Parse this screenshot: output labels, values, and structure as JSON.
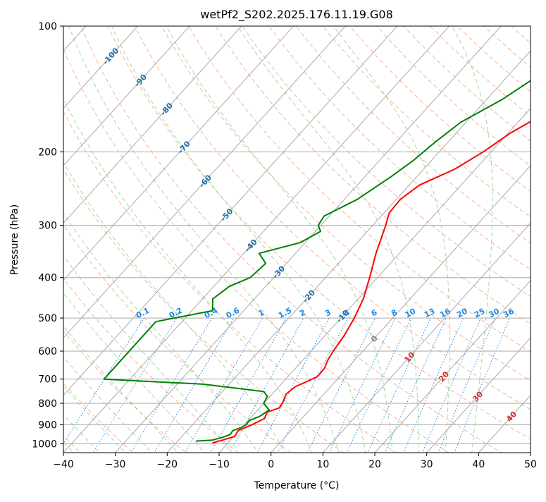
{
  "chart_data": {
    "type": "line",
    "title": "wetPf2_S202.2025.176.11.19.G08",
    "xlabel": "Temperature (°C)",
    "ylabel": "Pressure (hPa)",
    "xlim": [
      -40,
      50
    ],
    "ylim_hpa": [
      1050,
      100
    ],
    "y_scale": "log",
    "grid": true,
    "x_ticks": [
      "−40",
      "−30",
      "−20",
      "−10",
      "0",
      "10",
      "20",
      "30",
      "40",
      "50"
    ],
    "x_tick_values": [
      -40,
      -30,
      -20,
      -10,
      0,
      10,
      20,
      30,
      40,
      50
    ],
    "y_ticks": [
      "1000",
      "900",
      "800",
      "700",
      "600",
      "500",
      "400",
      "300",
      "200",
      "100"
    ],
    "y_tick_values": [
      1000,
      900,
      800,
      700,
      600,
      500,
      400,
      300,
      200,
      100
    ],
    "colors": {
      "temperature": "#ff0000",
      "dewpoint": "#008000",
      "isotherm": "#aaaaaa",
      "dry_adiabat": "#f4a07a",
      "moist_adiabat": "#8fce8f",
      "mixing_ratio": "#1e88e5",
      "isotherm_label": "#1f6fa8",
      "warm_isotherm_label": "#d62728",
      "zero_isotherm_label": "#808080",
      "mixing_ratio_label": "#1e88e5"
    },
    "series": [
      {
        "key": "temperature",
        "points": [
          {
            "p": 995,
            "t": -13.0
          },
          {
            "p": 980,
            "t": -11.5
          },
          {
            "p": 960,
            "t": -9.8
          },
          {
            "p": 930,
            "t": -10.2
          },
          {
            "p": 900,
            "t": -8.5
          },
          {
            "p": 870,
            "t": -7.2
          },
          {
            "p": 840,
            "t": -7.8
          },
          {
            "p": 820,
            "t": -6.2
          },
          {
            "p": 790,
            "t": -6.6
          },
          {
            "p": 760,
            "t": -7.3
          },
          {
            "p": 730,
            "t": -6.8
          },
          {
            "p": 705,
            "t": -5.2
          },
          {
            "p": 690,
            "t": -4.3
          },
          {
            "p": 660,
            "t": -4.4
          },
          {
            "p": 630,
            "t": -5.2
          },
          {
            "p": 600,
            "t": -5.7
          },
          {
            "p": 550,
            "t": -6.3
          },
          {
            "p": 500,
            "t": -7.4
          },
          {
            "p": 450,
            "t": -9.0
          },
          {
            "p": 400,
            "t": -11.5
          },
          {
            "p": 350,
            "t": -14.5
          },
          {
            "p": 300,
            "t": -17.5
          },
          {
            "p": 280,
            "t": -19.0
          },
          {
            "p": 260,
            "t": -19.2
          },
          {
            "p": 240,
            "t": -18.0
          },
          {
            "p": 220,
            "t": -14.0
          },
          {
            "p": 200,
            "t": -11.5
          },
          {
            "p": 180,
            "t": -9.5
          },
          {
            "p": 160,
            "t": -6.0
          },
          {
            "p": 140,
            "t": -3.5
          },
          {
            "p": 120,
            "t": -2.5
          },
          {
            "p": 100,
            "t": 1.2
          }
        ]
      },
      {
        "key": "dewpoint",
        "points": [
          {
            "p": 985,
            "t": -16.5
          },
          {
            "p": 980,
            "t": -13.5
          },
          {
            "p": 965,
            "t": -12.0
          },
          {
            "p": 950,
            "t": -11.0
          },
          {
            "p": 930,
            "t": -11.2
          },
          {
            "p": 915,
            "t": -10.2
          },
          {
            "p": 900,
            "t": -9.6
          },
          {
            "p": 880,
            "t": -9.8
          },
          {
            "p": 860,
            "t": -8.5
          },
          {
            "p": 830,
            "t": -7.8
          },
          {
            "p": 800,
            "t": -10.0
          },
          {
            "p": 770,
            "t": -10.5
          },
          {
            "p": 750,
            "t": -12.0
          },
          {
            "p": 720,
            "t": -25.0
          },
          {
            "p": 700,
            "t": -45.0
          },
          {
            "p": 510,
            "t": -45.0
          },
          {
            "p": 480,
            "t": -36.0
          },
          {
            "p": 450,
            "t": -38.0
          },
          {
            "p": 420,
            "t": -37.0
          },
          {
            "p": 400,
            "t": -34.5
          },
          {
            "p": 370,
            "t": -34.0
          },
          {
            "p": 350,
            "t": -37.0
          },
          {
            "p": 330,
            "t": -31.0
          },
          {
            "p": 310,
            "t": -29.0
          },
          {
            "p": 300,
            "t": -30.5
          },
          {
            "p": 285,
            "t": -31.0
          },
          {
            "p": 260,
            "t": -27.5
          },
          {
            "p": 230,
            "t": -25.0
          },
          {
            "p": 210,
            "t": -23.5
          },
          {
            "p": 190,
            "t": -22.5
          },
          {
            "p": 170,
            "t": -21.0
          },
          {
            "p": 150,
            "t": -17.0
          },
          {
            "p": 130,
            "t": -14.0
          },
          {
            "p": 110,
            "t": -8.5
          },
          {
            "p": 100,
            "t": -7.5
          }
        ]
      }
    ],
    "isotherm_labels": [
      {
        "text": "-100",
        "t": -100,
        "group": "cold"
      },
      {
        "text": "-90",
        "t": -90,
        "group": "cold"
      },
      {
        "text": "-80",
        "t": -80,
        "group": "cold"
      },
      {
        "text": "-70",
        "t": -70,
        "group": "cold"
      },
      {
        "text": "-60",
        "t": -60,
        "group": "cold"
      },
      {
        "text": "-50",
        "t": -50,
        "group": "cold"
      },
      {
        "text": "-40",
        "t": -40,
        "group": "cold"
      },
      {
        "text": "-30",
        "t": -30,
        "group": "cold"
      },
      {
        "text": "-20",
        "t": -20,
        "group": "cold"
      },
      {
        "text": "-10",
        "t": -10,
        "group": "cold"
      },
      {
        "text": "0",
        "t": 0,
        "group": "zero"
      },
      {
        "text": "10",
        "t": 10,
        "group": "warm"
      },
      {
        "text": "20",
        "t": 20,
        "group": "warm"
      },
      {
        "text": "30",
        "t": 30,
        "group": "warm"
      },
      {
        "text": "40",
        "t": 40,
        "group": "warm"
      }
    ],
    "mixing_ratio_labels": [
      "0.1",
      "0.2",
      "0.4",
      "0.6",
      "1",
      "1.5",
      "2",
      "3",
      "4",
      "6",
      "8",
      "10",
      "13",
      "16",
      "20",
      "25",
      "30",
      "36"
    ],
    "mixing_ratio_values": [
      0.1,
      0.2,
      0.4,
      0.6,
      1,
      1.5,
      2,
      3,
      4,
      6,
      8,
      10,
      13,
      16,
      20,
      25,
      30,
      36
    ]
  }
}
